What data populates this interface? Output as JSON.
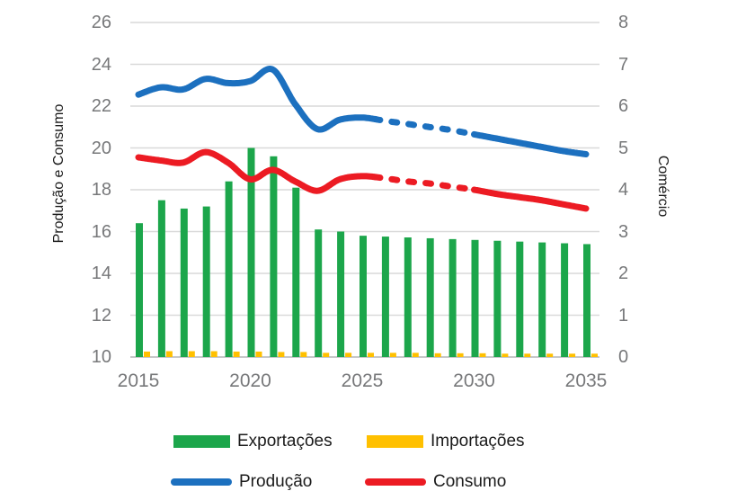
{
  "chart_data": {
    "type": "combo-bar-line",
    "title": "",
    "x": [
      2015,
      2016,
      2017,
      2018,
      2019,
      2020,
      2021,
      2022,
      2023,
      2024,
      2025,
      2026,
      2027,
      2028,
      2029,
      2030,
      2031,
      2032,
      2033,
      2034,
      2035
    ],
    "x_tick_years": [
      2015,
      2020,
      2025,
      2030,
      2035
    ],
    "x_tick_labels": [
      "2015",
      "2020",
      "2025",
      "2030",
      "2035"
    ],
    "left_axis": {
      "label": "Produção e Consumo",
      "min": 10,
      "max": 26,
      "tick_step": 2,
      "ticks": [
        10,
        12,
        14,
        16,
        18,
        20,
        22,
        24,
        26
      ]
    },
    "right_axis": {
      "label": "Comércio",
      "min": 0,
      "max": 8,
      "tick_step": 1,
      "ticks": [
        0,
        1,
        2,
        3,
        4,
        5,
        6,
        7,
        8
      ]
    },
    "grid": true,
    "series": [
      {
        "name": "Exportações",
        "type": "bar",
        "axis": "right",
        "color": "#1CA64B",
        "values": [
          3.2,
          3.75,
          3.55,
          3.6,
          4.2,
          5.0,
          4.8,
          4.05,
          3.05,
          3.0,
          2.9,
          2.88,
          2.86,
          2.84,
          2.82,
          2.8,
          2.78,
          2.76,
          2.74,
          2.72,
          2.7
        ]
      },
      {
        "name": "Importações",
        "type": "bar",
        "axis": "right",
        "color": "#FFC000",
        "values": [
          0.13,
          0.14,
          0.14,
          0.14,
          0.13,
          0.13,
          0.12,
          0.12,
          0.1,
          0.1,
          0.1,
          0.1,
          0.1,
          0.09,
          0.09,
          0.09,
          0.08,
          0.08,
          0.08,
          0.08,
          0.08
        ]
      },
      {
        "name": "Produção",
        "type": "line",
        "axis": "left",
        "color": "#1C70BF",
        "dashed_from": 2025.6,
        "dashed_to": 2030,
        "values": [
          22.55,
          22.9,
          22.8,
          23.3,
          23.1,
          23.2,
          23.75,
          22.1,
          20.9,
          21.35,
          21.45,
          21.3,
          21.15,
          21.0,
          20.85,
          20.65,
          20.45,
          20.25,
          20.05,
          19.85,
          19.7
        ]
      },
      {
        "name": "Consumo",
        "type": "line",
        "axis": "left",
        "color": "#EC1B23",
        "dashed_from": 2025.6,
        "dashed_to": 2030,
        "values": [
          19.55,
          19.4,
          19.3,
          19.8,
          19.3,
          18.5,
          18.95,
          18.4,
          17.95,
          18.5,
          18.65,
          18.55,
          18.4,
          18.3,
          18.15,
          18.0,
          17.8,
          17.65,
          17.5,
          17.3,
          17.1
        ]
      }
    ],
    "legend": [
      {
        "label": "Exportações",
        "swatch": "bar",
        "color": "#1CA64B"
      },
      {
        "label": "Importações",
        "swatch": "bar",
        "color": "#FFC000"
      },
      {
        "label": "Produção",
        "swatch": "line",
        "color": "#1C70BF"
      },
      {
        "label": "Consumo",
        "swatch": "line",
        "color": "#EC1B23"
      }
    ],
    "style_colors": {
      "grid": "#D9D9D9",
      "axis_line": "#C6C7C8",
      "tick_text": "#77787A",
      "label_text": "#1B1B1B",
      "background": "#FFFFFF"
    }
  }
}
